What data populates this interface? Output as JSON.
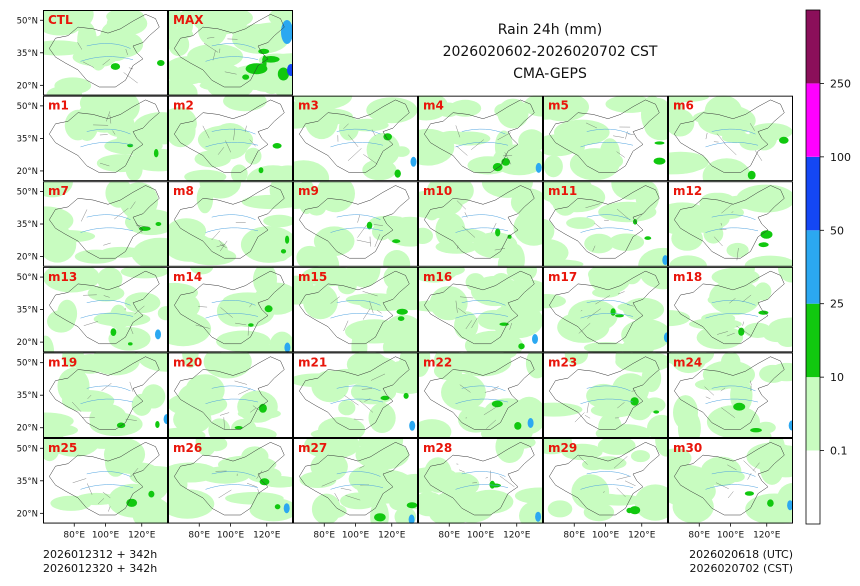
{
  "chart_data": {
    "type": "heatmap",
    "title": "Rain 24h (mm)",
    "period": "2026020602-2026020702 CST",
    "model": "CMA-GEPS",
    "panels": [
      "CTL",
      "MAX",
      "m1",
      "m2",
      "m3",
      "m4",
      "m5",
      "m6",
      "m7",
      "m8",
      "m9",
      "m10",
      "m11",
      "m12",
      "m13",
      "m14",
      "m15",
      "m16",
      "m17",
      "m18",
      "m19",
      "m20",
      "m21",
      "m22",
      "m23",
      "m24",
      "m25",
      "m26",
      "m27",
      "m28",
      "m29",
      "m30"
    ],
    "lat_ticks": [
      "50°N",
      "35°N",
      "20°N"
    ],
    "lon_ticks": [
      "80°E",
      "100°E",
      "120°E"
    ],
    "colorbar": {
      "levels": [
        "0.1",
        "10",
        "25",
        "50",
        "100",
        "250"
      ],
      "colors": [
        "#ffffff",
        "#c8fcc0",
        "#11c80f",
        "#2ba8f1",
        "#1447f5",
        "#ff00ff",
        "#8b0f5a"
      ]
    },
    "init_utc": "2026012312 + 342h",
    "init_cst": "2026012320 + 342h",
    "valid_utc": "2026020618 (UTC)",
    "valid_cst": "2026020702 (CST)"
  }
}
